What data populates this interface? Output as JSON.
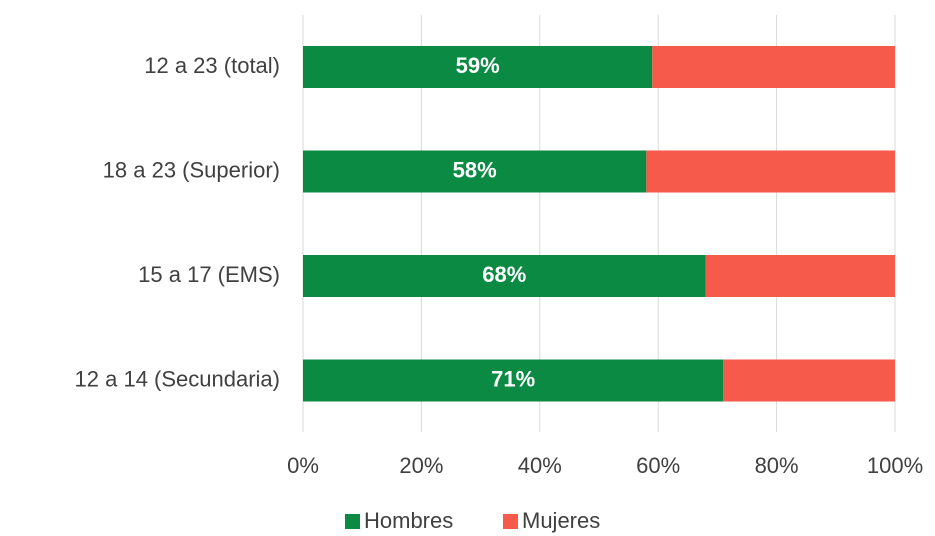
{
  "chart_data": {
    "type": "stacked-bar-horizontal",
    "categories": [
      "12 a 23 (total)",
      "18 a 23 (Superior)",
      "15 a 17 (EMS)",
      "12 a 14 (Secundaria)"
    ],
    "series": [
      {
        "name": "Hombres",
        "color": "#0b8a43",
        "values": [
          59,
          58,
          68,
          71
        ],
        "value_labels": [
          "59%",
          "58%",
          "68%",
          "71%"
        ]
      },
      {
        "name": "Mujeres",
        "color": "#f55a4a",
        "values": [
          41,
          42,
          32,
          29
        ]
      }
    ],
    "xlim": [
      0,
      100
    ],
    "xticks": [
      {
        "value": 0,
        "label": "0%"
      },
      {
        "value": 20,
        "label": "20%"
      },
      {
        "value": 40,
        "label": "40%"
      },
      {
        "value": 60,
        "label": "60%"
      },
      {
        "value": 80,
        "label": "80%"
      },
      {
        "value": 100,
        "label": "100%"
      }
    ],
    "grid": true,
    "legend": "bottom"
  }
}
